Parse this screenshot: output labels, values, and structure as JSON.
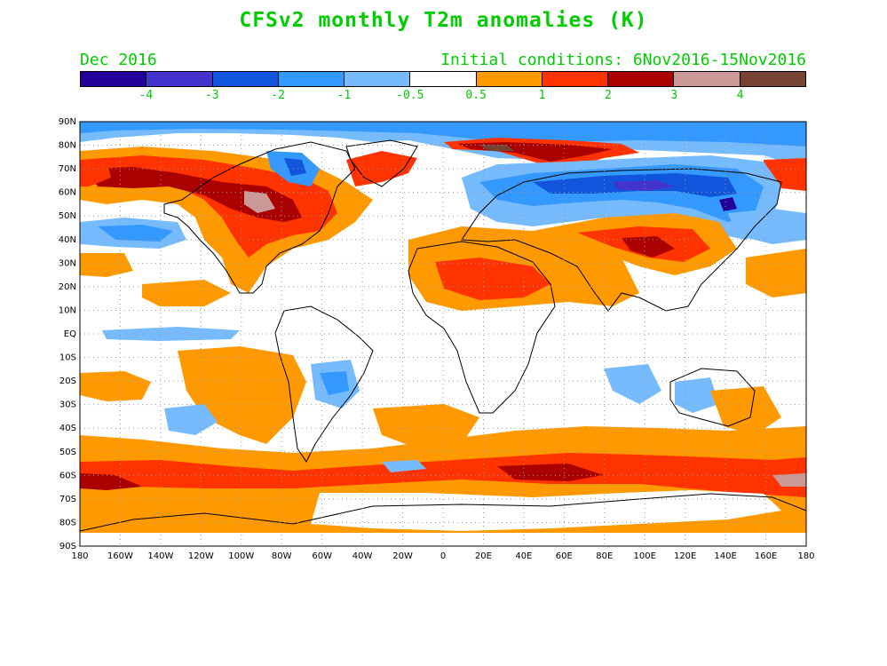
{
  "title": "CFSv2 monthly T2m anomalies (K)",
  "subtitle_left": "Dec 2016",
  "subtitle_right": "Initial conditions: 6Nov2016-15Nov2016",
  "text_color": "#00cc00",
  "colorbar": {
    "colors": [
      "#220099",
      "#4433cc",
      "#1155dd",
      "#3399ff",
      "#77bbff",
      "#ffffff",
      "#ff9900",
      "#ff3300",
      "#aa0000",
      "#cc9999",
      "#774433"
    ],
    "labels": [
      "-4",
      "-3",
      "-2",
      "-1",
      "-0.5",
      "0.5",
      "1",
      "2",
      "3",
      "4"
    ]
  },
  "axes": {
    "lat_labels": [
      "90N",
      "80N",
      "70N",
      "60N",
      "50N",
      "40N",
      "30N",
      "20N",
      "10N",
      "EQ",
      "10S",
      "20S",
      "30S",
      "40S",
      "50S",
      "60S",
      "70S",
      "80S",
      "90S"
    ],
    "lon_labels": [
      "180",
      "160W",
      "140W",
      "120W",
      "100W",
      "80W",
      "60W",
      "40W",
      "20W",
      "0",
      "20E",
      "40E",
      "60E",
      "80E",
      "100E",
      "120E",
      "140E",
      "160E",
      "180"
    ]
  }
}
